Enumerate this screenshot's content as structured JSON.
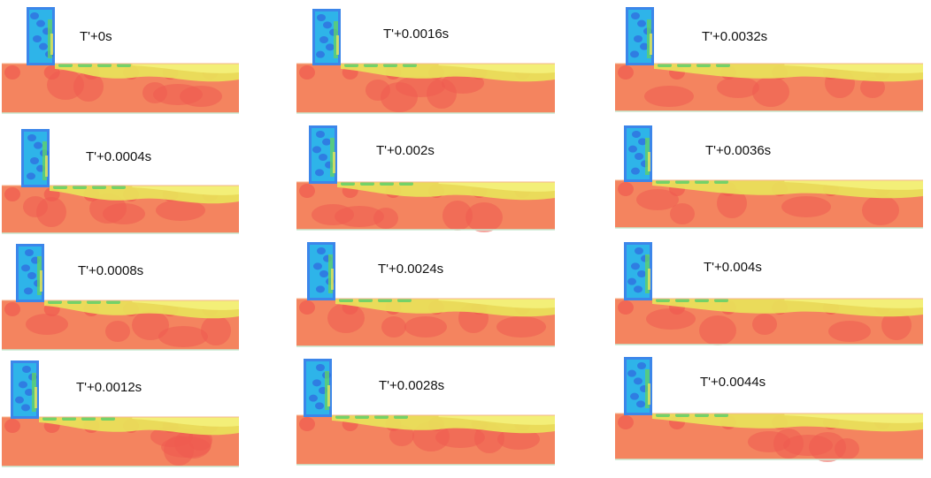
{
  "panels": [
    {
      "id": "p1",
      "label": "T'+0s"
    },
    {
      "id": "p2",
      "label": "T'+0.0016s"
    },
    {
      "id": "p3",
      "label": "T'+0.0032s"
    },
    {
      "id": "p4",
      "label": "T'+0.0004s"
    },
    {
      "id": "p5",
      "label": "T'+0.002s"
    },
    {
      "id": "p6",
      "label": "T'+0.0036s"
    },
    {
      "id": "p7",
      "label": "T'+0.0008s"
    },
    {
      "id": "p8",
      "label": "T'+0.0024s"
    },
    {
      "id": "p9",
      "label": "T'+0.004s"
    },
    {
      "id": "p10",
      "label": "T'+0.0012s"
    },
    {
      "id": "p11",
      "label": "T'+0.0028s"
    },
    {
      "id": "p12",
      "label": "T'+0.0044s"
    }
  ],
  "colors": {
    "background": "#ffffff",
    "bulk_orange": "#f4845f",
    "deep_red": "#ef5b50",
    "yellow": "#e9e45a",
    "light_yellow": "#f3f07a",
    "green": "#5fd06a",
    "cyan": "#29c3e8",
    "blue": "#2f6fe0",
    "edge_blue": "#3c86ea"
  }
}
